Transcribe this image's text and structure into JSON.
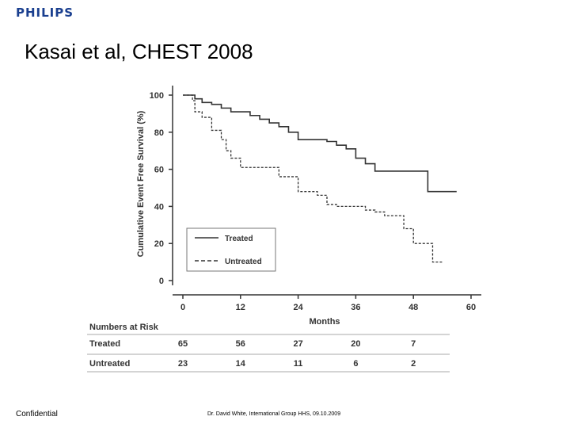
{
  "header": {
    "logo": "PHILIPS",
    "title": "Kasai et al, CHEST 2008"
  },
  "footer": {
    "left": "Confidential",
    "center": "Dr. David White, International Group HHS, 09.10.2009"
  },
  "colors": {
    "logo": "#1a3f8f",
    "curve": "#333333"
  },
  "chart_data": {
    "type": "line",
    "title": "",
    "xlabel": "Months",
    "ylabel": "Cumulative Event Free Survival (%)",
    "xlim": [
      0,
      60
    ],
    "ylim": [
      0,
      100
    ],
    "xticks": [
      0,
      12,
      24,
      36,
      48,
      60
    ],
    "yticks": [
      0,
      20,
      40,
      60,
      80,
      100
    ],
    "grid": false,
    "legend": "lower-left",
    "series": [
      {
        "name": "Treated",
        "style": "solid",
        "step": true,
        "x": [
          0,
          2.5,
          4,
          6,
          8,
          10,
          14,
          16,
          18,
          20,
          22,
          24,
          30,
          32,
          34,
          36,
          38,
          40,
          44,
          48,
          51,
          57
        ],
        "y": [
          100,
          98,
          96,
          95,
          93,
          91,
          89,
          87,
          85,
          83,
          80,
          76,
          75,
          73,
          71,
          66,
          63,
          59,
          59,
          59,
          48,
          48
        ]
      },
      {
        "name": "Untreated",
        "style": "dashed",
        "step": true,
        "x": [
          0,
          2,
          2.5,
          4,
          6,
          8,
          9,
          10,
          12,
          14,
          16,
          18,
          20,
          24,
          28,
          30,
          32,
          36,
          38,
          40,
          42,
          46,
          48,
          50,
          52,
          54
        ],
        "y": [
          100,
          97,
          91,
          88,
          81,
          76,
          70,
          66,
          61,
          61,
          61,
          61,
          56,
          48,
          46,
          41,
          40,
          40,
          38,
          37,
          35,
          28,
          20,
          20,
          10,
          10
        ]
      }
    ]
  },
  "risk_table": {
    "title": "Numbers at Risk",
    "rows": [
      {
        "label": "Treated",
        "values": [
          "65",
          "56",
          "27",
          "20",
          "7"
        ]
      },
      {
        "label": "Untreated",
        "values": [
          "23",
          "14",
          "11",
          "6",
          "2"
        ]
      }
    ]
  }
}
